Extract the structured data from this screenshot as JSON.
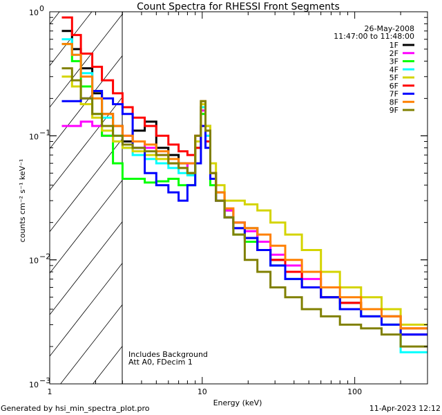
{
  "chart_data": {
    "type": "line",
    "title": "Count Spectra for RHESSI Front Segments",
    "xlabel": "Energy (keV)",
    "ylabel": "counts cm⁻² s⁻¹ keV⁻¹",
    "xscale": "log",
    "yscale": "log",
    "xlim": [
      1,
      300
    ],
    "ylim": [
      0.001,
      1
    ],
    "x_ticks": [
      {
        "v": 1,
        "label": "1"
      },
      {
        "v": 10,
        "label": "10"
      },
      {
        "v": 100,
        "label": "100"
      }
    ],
    "y_ticks": [
      {
        "v": 0.001,
        "base": "10",
        "exp": "−3"
      },
      {
        "v": 0.01,
        "base": "10",
        "exp": "−2"
      },
      {
        "v": 0.1,
        "base": "10",
        "exp": "−1"
      },
      {
        "v": 1,
        "base": "10",
        "exp": "0"
      }
    ],
    "excluded_region_keV": [
      1,
      3
    ],
    "legend_placement": "top-right",
    "date": "26-May-2008",
    "time_range": "11:47:00 to 11:48:00",
    "annotations": [
      "Includes Background",
      "Att A0, FDecim 1"
    ],
    "energy_edges": [
      1.2,
      1.4,
      1.6,
      1.9,
      2.2,
      2.6,
      3.0,
      3.5,
      4.2,
      5.0,
      6.0,
      7.0,
      8.0,
      9.0,
      9.8,
      10.5,
      11.3,
      12.3,
      14,
      16,
      19,
      23,
      28,
      35,
      45,
      60,
      80,
      110,
      150,
      200,
      300
    ],
    "series": [
      {
        "name": "1F",
        "color": "#000000",
        "values": [
          0.7,
          0.5,
          0.35,
          0.22,
          0.15,
          0.12,
          0.09,
          0.11,
          0.13,
          0.08,
          0.07,
          0.06,
          0.05,
          0.09,
          0.17,
          0.12,
          0.05,
          0.035,
          0.025,
          0.02,
          0.018,
          0.012,
          0.01,
          0.008,
          0.006,
          0.005,
          0.0045,
          0.004,
          0.0035,
          0.0025
        ]
      },
      {
        "name": "2F",
        "color": "#ff00ff",
        "values": [
          0.12,
          0.12,
          0.13,
          0.12,
          0.1,
          0.09,
          0.1,
          0.09,
          0.08,
          0.07,
          0.06,
          0.055,
          0.06,
          0.1,
          0.16,
          0.1,
          0.05,
          0.03,
          0.025,
          0.02,
          0.017,
          0.014,
          0.011,
          0.009,
          0.007,
          0.005,
          0.004,
          0.0035,
          0.003,
          0.0025
        ]
      },
      {
        "name": "3F",
        "color": "#00ff00",
        "values": [
          0.55,
          0.4,
          0.25,
          0.15,
          0.1,
          0.06,
          0.045,
          0.045,
          0.042,
          0.043,
          0.045,
          0.04,
          0.04,
          0.08,
          0.15,
          0.09,
          0.04,
          0.03,
          0.022,
          0.016,
          0.014,
          0.012,
          0.009,
          0.007,
          0.006,
          0.005,
          0.004,
          0.0035,
          0.003,
          0.002
        ]
      },
      {
        "name": "4F",
        "color": "#00ffff",
        "values": [
          0.6,
          0.45,
          0.32,
          0.2,
          0.14,
          0.1,
          0.08,
          0.07,
          0.065,
          0.06,
          0.055,
          0.05,
          0.048,
          0.09,
          0.17,
          0.1,
          0.05,
          0.03,
          0.022,
          0.018,
          0.015,
          0.012,
          0.009,
          0.007,
          0.006,
          0.005,
          0.004,
          0.0035,
          0.003,
          0.0018
        ]
      },
      {
        "name": "5F",
        "color": "#d4d400",
        "values": [
          0.3,
          0.25,
          0.18,
          0.14,
          0.11,
          0.09,
          0.08,
          0.075,
          0.07,
          0.065,
          0.06,
          0.055,
          0.05,
          0.09,
          0.18,
          0.12,
          0.06,
          0.04,
          0.03,
          0.03,
          0.028,
          0.025,
          0.02,
          0.016,
          0.012,
          0.008,
          0.006,
          0.005,
          0.004,
          0.003
        ]
      },
      {
        "name": "6F",
        "color": "#ff0000",
        "values": [
          0.9,
          0.65,
          0.46,
          0.36,
          0.28,
          0.22,
          0.17,
          0.14,
          0.12,
          0.1,
          0.085,
          0.075,
          0.07,
          0.08,
          0.12,
          0.09,
          0.05,
          0.03,
          0.022,
          0.018,
          0.015,
          0.012,
          0.01,
          0.008,
          0.006,
          0.005,
          0.0045,
          0.004,
          0.0035,
          0.0028
        ]
      },
      {
        "name": "7F",
        "color": "#0000ff",
        "values": [
          0.19,
          0.19,
          0.2,
          0.23,
          0.2,
          0.18,
          0.15,
          0.08,
          0.05,
          0.04,
          0.035,
          0.03,
          0.04,
          0.06,
          0.12,
          0.08,
          0.045,
          0.03,
          0.022,
          0.018,
          0.015,
          0.012,
          0.009,
          0.007,
          0.006,
          0.005,
          0.004,
          0.0035,
          0.003,
          0.0025
        ]
      },
      {
        "name": "8F",
        "color": "#ff8000",
        "values": [
          0.55,
          0.45,
          0.3,
          0.2,
          0.15,
          0.12,
          0.1,
          0.09,
          0.085,
          0.075,
          0.065,
          0.06,
          0.06,
          0.1,
          0.19,
          0.11,
          0.05,
          0.035,
          0.026,
          0.02,
          0.018,
          0.016,
          0.013,
          0.01,
          0.008,
          0.006,
          0.005,
          0.004,
          0.0035,
          0.0028
        ]
      },
      {
        "name": "9F",
        "color": "#808000",
        "values": [
          0.35,
          0.28,
          0.2,
          0.15,
          0.12,
          0.1,
          0.085,
          0.08,
          0.075,
          0.07,
          0.06,
          0.055,
          0.05,
          0.1,
          0.19,
          0.11,
          0.05,
          0.03,
          0.022,
          0.016,
          0.01,
          0.008,
          0.006,
          0.005,
          0.004,
          0.0035,
          0.003,
          0.0028,
          0.0025,
          0.002
        ]
      }
    ]
  },
  "footer": {
    "generated_by": "Generated by hsi_min_spectra_plot.pro",
    "timestamp": "11-Apr-2023 12:12"
  }
}
